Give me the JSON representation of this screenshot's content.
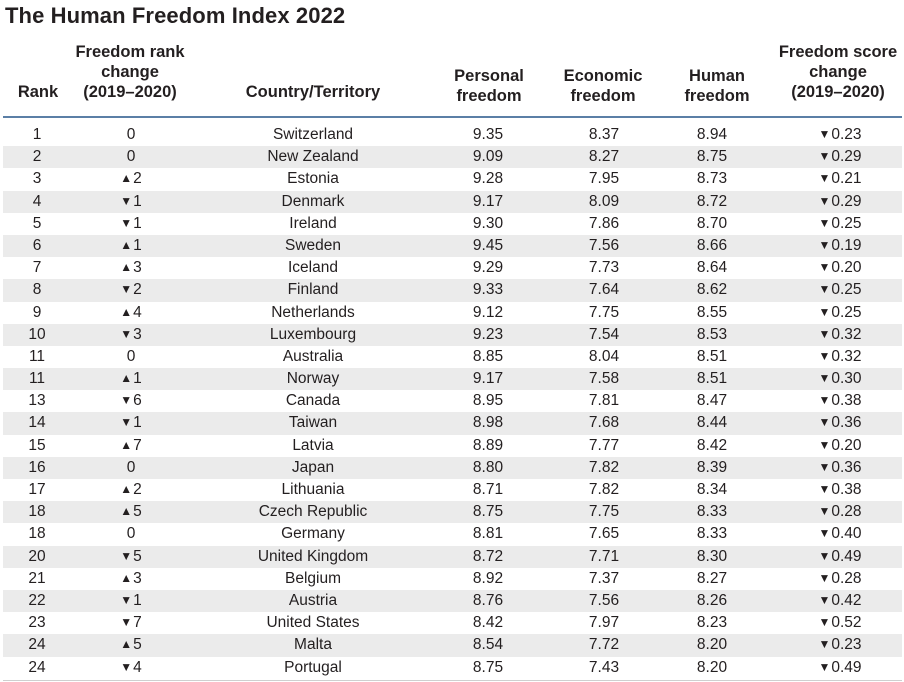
{
  "title": "The Human Freedom Index 2022",
  "headers": {
    "rank": "Rank",
    "rank_change_l1": "Freedom rank",
    "rank_change_l2": "change",
    "rank_change_l3": "(2019–2020)",
    "country": "Country/Territory",
    "personal_l1": "Personal",
    "personal_l2": "freedom",
    "economic_l1": "Economic",
    "economic_l2": "freedom",
    "human_l1": "Human",
    "human_l2": "freedom",
    "score_change_l1": "Freedom score",
    "score_change_l2": "change",
    "score_change_l3": "(2019–2020)"
  },
  "symbols": {
    "up": "▲",
    "down": "▼"
  },
  "chart_data": {
    "type": "table",
    "title": "The Human Freedom Index 2022",
    "columns": [
      "Rank",
      "Freedom rank change (2019–2020)",
      "Country/Territory",
      "Personal freedom",
      "Economic freedom",
      "Human freedom",
      "Freedom score change (2019–2020)"
    ],
    "rows": [
      {
        "rank": "1",
        "rank_change": "0",
        "country": "Switzerland",
        "personal": "9.35",
        "economic": "8.37",
        "human": "8.94",
        "score_change": "▼0.23"
      },
      {
        "rank": "2",
        "rank_change": "0",
        "country": "New Zealand",
        "personal": "9.09",
        "economic": "8.27",
        "human": "8.75",
        "score_change": "▼0.29"
      },
      {
        "rank": "3",
        "rank_change": "▲2",
        "country": "Estonia",
        "personal": "9.28",
        "economic": "7.95",
        "human": "8.73",
        "score_change": "▼0.21"
      },
      {
        "rank": "4",
        "rank_change": "▼1",
        "country": "Denmark",
        "personal": "9.17",
        "economic": "8.09",
        "human": "8.72",
        "score_change": "▼0.29"
      },
      {
        "rank": "5",
        "rank_change": "▼1",
        "country": "Ireland",
        "personal": "9.30",
        "economic": "7.86",
        "human": "8.70",
        "score_change": "▼0.25"
      },
      {
        "rank": "6",
        "rank_change": "▲1",
        "country": "Sweden",
        "personal": "9.45",
        "economic": "7.56",
        "human": "8.66",
        "score_change": "▼0.19"
      },
      {
        "rank": "7",
        "rank_change": "▲3",
        "country": "Iceland",
        "personal": "9.29",
        "economic": "7.73",
        "human": "8.64",
        "score_change": "▼0.20"
      },
      {
        "rank": "8",
        "rank_change": "▼2",
        "country": "Finland",
        "personal": "9.33",
        "economic": "7.64",
        "human": "8.62",
        "score_change": "▼0.25"
      },
      {
        "rank": "9",
        "rank_change": "▲4",
        "country": "Netherlands",
        "personal": "9.12",
        "economic": "7.75",
        "human": "8.55",
        "score_change": "▼0.25"
      },
      {
        "rank": "10",
        "rank_change": "▼3",
        "country": "Luxembourg",
        "personal": "9.23",
        "economic": "7.54",
        "human": "8.53",
        "score_change": "▼0.32"
      },
      {
        "rank": "11",
        "rank_change": "0",
        "country": "Australia",
        "personal": "8.85",
        "economic": "8.04",
        "human": "8.51",
        "score_change": "▼0.32"
      },
      {
        "rank": "11",
        "rank_change": "▲1",
        "country": "Norway",
        "personal": "9.17",
        "economic": "7.58",
        "human": "8.51",
        "score_change": "▼0.30"
      },
      {
        "rank": "13",
        "rank_change": "▼6",
        "country": "Canada",
        "personal": "8.95",
        "economic": "7.81",
        "human": "8.47",
        "score_change": "▼0.38"
      },
      {
        "rank": "14",
        "rank_change": "▼1",
        "country": "Taiwan",
        "personal": "8.98",
        "economic": "7.68",
        "human": "8.44",
        "score_change": "▼0.36"
      },
      {
        "rank": "15",
        "rank_change": "▲7",
        "country": "Latvia",
        "personal": "8.89",
        "economic": "7.77",
        "human": "8.42",
        "score_change": "▼0.20"
      },
      {
        "rank": "16",
        "rank_change": "0",
        "country": "Japan",
        "personal": "8.80",
        "economic": "7.82",
        "human": "8.39",
        "score_change": "▼0.36"
      },
      {
        "rank": "17",
        "rank_change": "▲2",
        "country": "Lithuania",
        "personal": "8.71",
        "economic": "7.82",
        "human": "8.34",
        "score_change": "▼0.38"
      },
      {
        "rank": "18",
        "rank_change": "▲5",
        "country": "Czech Republic",
        "personal": "8.75",
        "economic": "7.75",
        "human": "8.33",
        "score_change": "▼0.28"
      },
      {
        "rank": "18",
        "rank_change": "0",
        "country": "Germany",
        "personal": "8.81",
        "economic": "7.65",
        "human": "8.33",
        "score_change": "▼0.40"
      },
      {
        "rank": "20",
        "rank_change": "▼5",
        "country": "United Kingdom",
        "personal": "8.72",
        "economic": "7.71",
        "human": "8.30",
        "score_change": "▼0.49"
      },
      {
        "rank": "21",
        "rank_change": "▲3",
        "country": "Belgium",
        "personal": "8.92",
        "economic": "7.37",
        "human": "8.27",
        "score_change": "▼0.28"
      },
      {
        "rank": "22",
        "rank_change": "▼1",
        "country": "Austria",
        "personal": "8.76",
        "economic": "7.56",
        "human": "8.26",
        "score_change": "▼0.42"
      },
      {
        "rank": "23",
        "rank_change": "▼7",
        "country": "United States",
        "personal": "8.42",
        "economic": "7.97",
        "human": "8.23",
        "score_change": "▼0.52"
      },
      {
        "rank": "24",
        "rank_change": "▲5",
        "country": "Malta",
        "personal": "8.54",
        "economic": "7.72",
        "human": "8.20",
        "score_change": "▼0.23"
      },
      {
        "rank": "24",
        "rank_change": "▼4",
        "country": "Portugal",
        "personal": "8.75",
        "economic": "7.43",
        "human": "8.20",
        "score_change": "▼0.49"
      }
    ]
  },
  "colors": {
    "rule": "#5b7fa6",
    "stripe": "#ebebeb",
    "text": "#231f20"
  }
}
